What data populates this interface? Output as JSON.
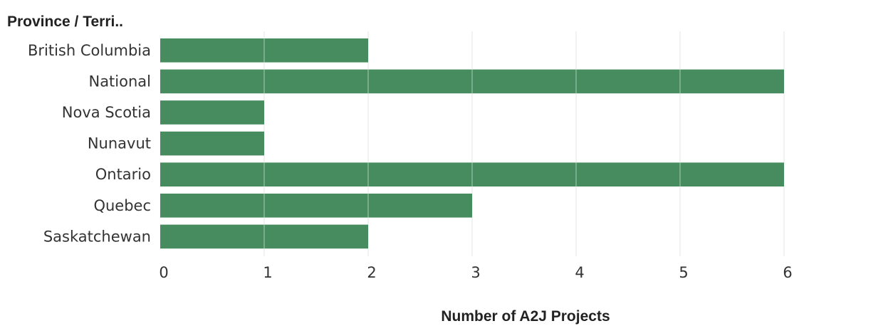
{
  "chart_data": {
    "type": "bar",
    "orientation": "horizontal",
    "row_header": "Province / Terri..",
    "categories": [
      "British Columbia",
      "National",
      "Nova Scotia",
      "Nunavut",
      "Ontario",
      "Quebec",
      "Saskatchewan"
    ],
    "values": [
      2,
      6,
      1,
      1,
      6,
      3,
      2
    ],
    "xlabel": "Number of A2J Projects",
    "xlim": [
      0,
      7
    ],
    "xticks": [
      0,
      1,
      2,
      3,
      4,
      5,
      6,
      7
    ],
    "grid": true,
    "bar_color": "#468c5f"
  }
}
